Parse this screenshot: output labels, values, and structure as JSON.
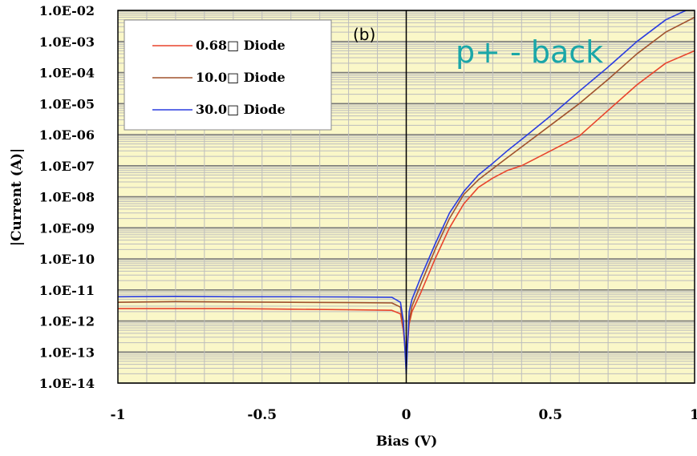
{
  "chart_data": {
    "type": "line",
    "title": "",
    "panel_label": "(b)",
    "annotation": "p+ - back",
    "xlabel": "Bias (V)",
    "ylabel": "|Current (A)|",
    "xlim": [
      -1,
      1
    ],
    "ylim": [
      1e-14,
      0.01
    ],
    "yscale": "log",
    "grid": true,
    "plot_background": "#faf7c8",
    "legend_position": "top-left",
    "x_ticks": [
      {
        "value": -1,
        "label": "-1"
      },
      {
        "value": -0.5,
        "label": "-0.5"
      },
      {
        "value": 0,
        "label": "0"
      },
      {
        "value": 0.5,
        "label": "0.5"
      },
      {
        "value": 1,
        "label": "1"
      }
    ],
    "y_ticks": [
      {
        "value": 0.01,
        "label": "1.0E-02"
      },
      {
        "value": 0.001,
        "label": "1.0E-03"
      },
      {
        "value": 0.0001,
        "label": "1.0E-04"
      },
      {
        "value": 1e-05,
        "label": "1.0E-05"
      },
      {
        "value": 1e-06,
        "label": "1.0E-06"
      },
      {
        "value": 1e-07,
        "label": "1.0E-07"
      },
      {
        "value": 1e-08,
        "label": "1.0E-08"
      },
      {
        "value": 1e-09,
        "label": "1.0E-09"
      },
      {
        "value": 1e-10,
        "label": "1.0E-10"
      },
      {
        "value": 1e-11,
        "label": "1.0E-11"
      },
      {
        "value": 1e-12,
        "label": "1.0E-12"
      },
      {
        "value": 1e-13,
        "label": "1.0E-13"
      },
      {
        "value": 1e-14,
        "label": "1.0E-14"
      }
    ],
    "series": [
      {
        "name": "0.68□ Diode",
        "color": "#e8442c",
        "x": [
          -1,
          -0.8,
          -0.6,
          -0.4,
          -0.2,
          -0.05,
          -0.02,
          -0.01,
          0,
          0.01,
          0.02,
          0.05,
          0.1,
          0.15,
          0.2,
          0.25,
          0.3,
          0.35,
          0.4,
          0.5,
          0.6,
          0.7,
          0.8,
          0.9,
          1.0
        ],
        "y": [
          2.5e-12,
          2.5e-12,
          2.5e-12,
          2.4e-12,
          2.3e-12,
          2.2e-12,
          1.7e-12,
          5e-13,
          5e-14,
          8e-13,
          2e-12,
          8e-12,
          1e-10,
          1e-09,
          6e-09,
          2e-08,
          4e-08,
          7e-08,
          1e-07,
          3e-07,
          9e-07,
          6e-06,
          4e-05,
          0.0002,
          0.0005
        ]
      },
      {
        "name": "10.0□ Diode",
        "color": "#a0522d",
        "x": [
          -1,
          -0.8,
          -0.6,
          -0.4,
          -0.2,
          -0.05,
          -0.02,
          -0.01,
          0,
          0.01,
          0.02,
          0.05,
          0.1,
          0.15,
          0.2,
          0.25,
          0.3,
          0.35,
          0.4,
          0.5,
          0.6,
          0.7,
          0.8,
          0.9,
          1.0
        ],
        "y": [
          4e-12,
          4.2e-12,
          4.1e-12,
          4e-12,
          3.9e-12,
          3.8e-12,
          2.8e-12,
          6e-13,
          6e-14,
          1e-12,
          3e-12,
          1.5e-11,
          2e-10,
          2e-09,
          1.2e-08,
          3.5e-08,
          8e-08,
          1.8e-07,
          4e-07,
          2e-06,
          1e-05,
          6e-05,
          0.0004,
          0.002,
          0.006
        ]
      },
      {
        "name": "30.0□ Diode",
        "color": "#2a3de0",
        "x": [
          -1,
          -0.8,
          -0.6,
          -0.4,
          -0.2,
          -0.05,
          -0.02,
          -0.01,
          0,
          0.01,
          0.02,
          0.05,
          0.1,
          0.15,
          0.2,
          0.25,
          0.3,
          0.35,
          0.4,
          0.5,
          0.6,
          0.7,
          0.8,
          0.9,
          0.97
        ],
        "y": [
          6e-12,
          6.2e-12,
          6e-12,
          6e-12,
          5.9e-12,
          5.8e-12,
          4e-12,
          1e-12,
          2e-14,
          2e-12,
          5e-12,
          2.5e-11,
          3e-10,
          3e-09,
          1.5e-08,
          5e-08,
          1.2e-07,
          3e-07,
          7e-07,
          4e-06,
          2.5e-05,
          0.00015,
          0.001,
          0.005,
          0.01
        ]
      }
    ]
  }
}
